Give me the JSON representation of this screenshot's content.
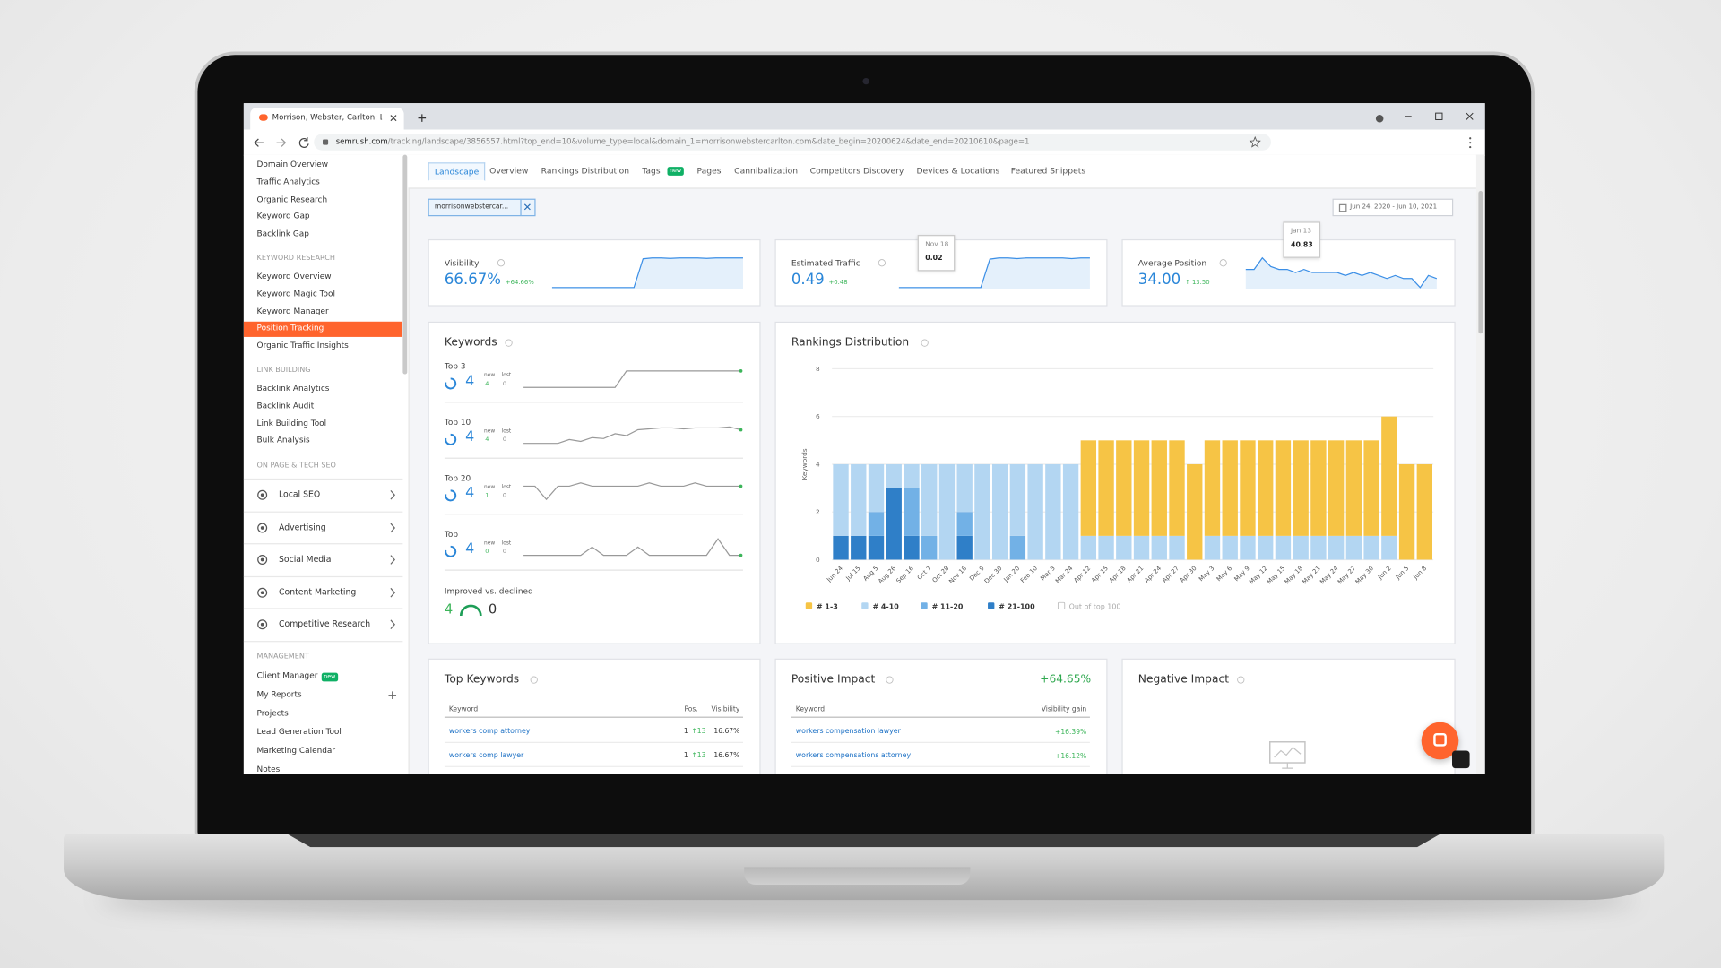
{
  "browser": {
    "tab_title": "Morrison, Webster, Carlton: Land",
    "url_host": "semrush.com",
    "url_path": "/tracking/landscape/3856557.html?top_end=10&volume_type=local&domain_1=morrisonwebstercarlton.com&date_begin=20200624&date_end=20210610&page=1"
  },
  "sidebar": {
    "links": [
      "Domain Overview",
      "Traffic Analytics",
      "Organic Research",
      "Keyword Gap",
      "Backlink Gap"
    ],
    "sections": [
      {
        "heading": "KEYWORD RESEARCH",
        "items": [
          "Keyword Overview",
          "Keyword Magic Tool",
          "Keyword Manager",
          "Position Tracking",
          "Organic Traffic Insights"
        ]
      },
      {
        "heading": "LINK BUILDING",
        "items": [
          "Backlink Analytics",
          "Backlink Audit",
          "Link Building Tool",
          "Bulk Analysis"
        ]
      }
    ],
    "menus_heading": "ON PAGE & TECH SEO",
    "menus": [
      "Local SEO",
      "Advertising",
      "Social Media",
      "Content Marketing",
      "Competitive Research"
    ],
    "management": {
      "heading": "MANAGEMENT",
      "items": [
        "Client Manager",
        "My Reports",
        "Projects",
        "Lead Generation Tool",
        "Marketing Calendar",
        "Notes"
      ],
      "badge": "new"
    }
  },
  "main": {
    "tabs": [
      "Landscape",
      "Overview",
      "Rankings Distribution",
      "Tags",
      "Pages",
      "Cannibalization",
      "Competitors Discovery",
      "Devices & Locations",
      "Featured Snippets"
    ],
    "tag_badge": "new",
    "domain_chip": "morrisonwebstercar...",
    "date_range": "Jun 24, 2020 - Jun 10, 2021",
    "metrics": [
      {
        "label": "Visibility",
        "value": "66.67%",
        "change": "+64.66%",
        "sparkline": [
          2,
          2,
          2,
          2,
          2,
          2,
          2,
          2,
          2,
          2,
          64,
          66,
          66,
          65,
          66,
          66,
          66,
          65,
          66,
          66,
          66,
          66
        ]
      },
      {
        "label": "Estimated Traffic",
        "value": "0.49",
        "change": "+0.48",
        "sparkline": [
          0.02,
          0.02,
          0.02,
          0.02,
          0.02,
          0.02,
          0.02,
          0.02,
          0.02,
          0.02,
          0.47,
          0.49,
          0.49,
          0.48,
          0.49,
          0.49,
          0.49,
          0.49,
          0.49,
          0.48,
          0.49,
          0.49
        ],
        "tooltip": {
          "date": "Nov 18",
          "value": "0.02"
        }
      },
      {
        "label": "Average Position",
        "value": "34.00",
        "change": "↑ 13.50",
        "sparkline": [
          37,
          37,
          40.83,
          38,
          37,
          37,
          36,
          37,
          36,
          36,
          36,
          36,
          35,
          36,
          35,
          36,
          35,
          34,
          35,
          34,
          34,
          31,
          35,
          34
        ],
        "tooltip": {
          "date": "Jan 13",
          "value": "40.83"
        }
      }
    ],
    "keywords": {
      "title": "Keywords",
      "rows": [
        {
          "label": "Top 3",
          "value": "4",
          "new_label": "new",
          "new": "4",
          "lost_label": "lost",
          "lost": "0",
          "sparkline": [
            3,
            3,
            3,
            3,
            3,
            3,
            3,
            3,
            3,
            4,
            4,
            4,
            4,
            4,
            4,
            4,
            4,
            4,
            4,
            4
          ]
        },
        {
          "label": "Top 10",
          "value": "4",
          "new_label": "new",
          "new": "4",
          "lost_label": "lost",
          "lost": "0",
          "sparkline": [
            2,
            2,
            2,
            2,
            2.4,
            2.2,
            2.6,
            2.5,
            3,
            2.8,
            3.4,
            3.5,
            3.6,
            3.6,
            3.5,
            3.6,
            3.6,
            3.6,
            3.7,
            3.4
          ]
        },
        {
          "label": "Top 20",
          "value": "4",
          "new_label": "new",
          "new": "1",
          "lost_label": "lost",
          "lost": "0",
          "sparkline": [
            3.6,
            3.6,
            3.2,
            3.6,
            3.6,
            3.7,
            3.6,
            3.6,
            3.6,
            3.6,
            3.6,
            3.7,
            3.6,
            3.6,
            3.6,
            3.7,
            3.6,
            3.6,
            3.6,
            3.6
          ]
        },
        {
          "label": "Top",
          "value": "4",
          "new_label": "new",
          "new": "0",
          "lost_label": "lost",
          "lost": "0",
          "sparkline": [
            3.6,
            3.6,
            3.6,
            3.6,
            3.6,
            3.6,
            3.7,
            3.6,
            3.6,
            3.6,
            3.7,
            3.6,
            3.6,
            3.6,
            3.6,
            3.6,
            3.6,
            3.8,
            3.6,
            3.6
          ]
        }
      ],
      "improved_label": "Improved vs. declined",
      "improved": "4",
      "declined": "0"
    },
    "top_keywords": {
      "title": "Top Keywords",
      "headers": [
        "Keyword",
        "Pos.",
        "Visibility"
      ],
      "rows": [
        [
          "workers comp attorney",
          "1",
          "↑13",
          "16.67%"
        ],
        [
          "workers comp lawyer",
          "1",
          "↑13",
          "16.67%"
        ]
      ]
    },
    "positive_impact": {
      "title": "Positive Impact",
      "total": "+64.65%",
      "headers": [
        "Keyword",
        "Visibility gain"
      ],
      "rows": [
        [
          "workers compensation lawyer",
          "+16.39%"
        ],
        [
          "workers compensations attorney",
          "+16.12%"
        ]
      ]
    },
    "negative_impact": {
      "title": "Negative Impact"
    }
  },
  "chart_data": {
    "type": "bar",
    "stacked": true,
    "title": "Rankings Distribution",
    "y_label": "Keywords",
    "categories": [
      "Jun 24",
      "Jul 15",
      "Aug 5",
      "Aug 26",
      "Sep 16",
      "Oct 7",
      "Oct 28",
      "Nov 18",
      "Dec 9",
      "Dec 30",
      "Jan 20",
      "Feb 10",
      "Mar 3",
      "Mar 24",
      "Apr 12",
      "Apr 15",
      "Apr 18",
      "Apr 21",
      "Apr 24",
      "Apr 27",
      "Apr 30",
      "May 3",
      "May 6",
      "May 9",
      "May 12",
      "May 15",
      "May 18",
      "May 21",
      "May 24",
      "May 27",
      "May 30",
      "Jun 2",
      "Jun 5",
      "Jun 8"
    ],
    "ylim": [
      0,
      8
    ],
    "yticks": [
      0,
      2,
      4,
      6,
      8
    ],
    "grid": true,
    "series": [
      {
        "name": "# 1-3",
        "color": "#f6c445",
        "values": [
          0,
          0,
          0,
          0,
          0,
          0,
          0,
          0,
          0,
          0,
          0,
          0,
          0,
          0,
          4,
          4,
          4,
          4,
          4,
          4,
          4,
          4,
          4,
          4,
          4,
          4,
          4,
          4,
          4,
          4,
          4,
          5,
          4,
          4
        ]
      },
      {
        "name": "# 4-10",
        "color": "#b3d6f2",
        "values": [
          3,
          3,
          2,
          1,
          1,
          3,
          4,
          2,
          4,
          4,
          3,
          4,
          4,
          4,
          1,
          1,
          1,
          1,
          1,
          1,
          0,
          1,
          1,
          1,
          1,
          1,
          1,
          1,
          1,
          1,
          1,
          1,
          0,
          0
        ]
      },
      {
        "name": "# 11-20",
        "color": "#72b1e6",
        "values": [
          0,
          0,
          1,
          0,
          2,
          1,
          0,
          1,
          0,
          0,
          1,
          0,
          0,
          0,
          0,
          0,
          0,
          0,
          0,
          0,
          0,
          0,
          0,
          0,
          0,
          0,
          0,
          0,
          0,
          0,
          0,
          0,
          0,
          0
        ]
      },
      {
        "name": "# 21-100",
        "color": "#2f7fc8",
        "values": [
          1,
          1,
          1,
          3,
          1,
          0,
          0,
          1,
          0,
          0,
          0,
          0,
          0,
          0,
          0,
          0,
          0,
          0,
          0,
          0,
          0,
          0,
          0,
          0,
          0,
          0,
          0,
          0,
          0,
          0,
          0,
          0,
          0,
          0
        ]
      }
    ],
    "legend_extra": "Out of top 100"
  }
}
